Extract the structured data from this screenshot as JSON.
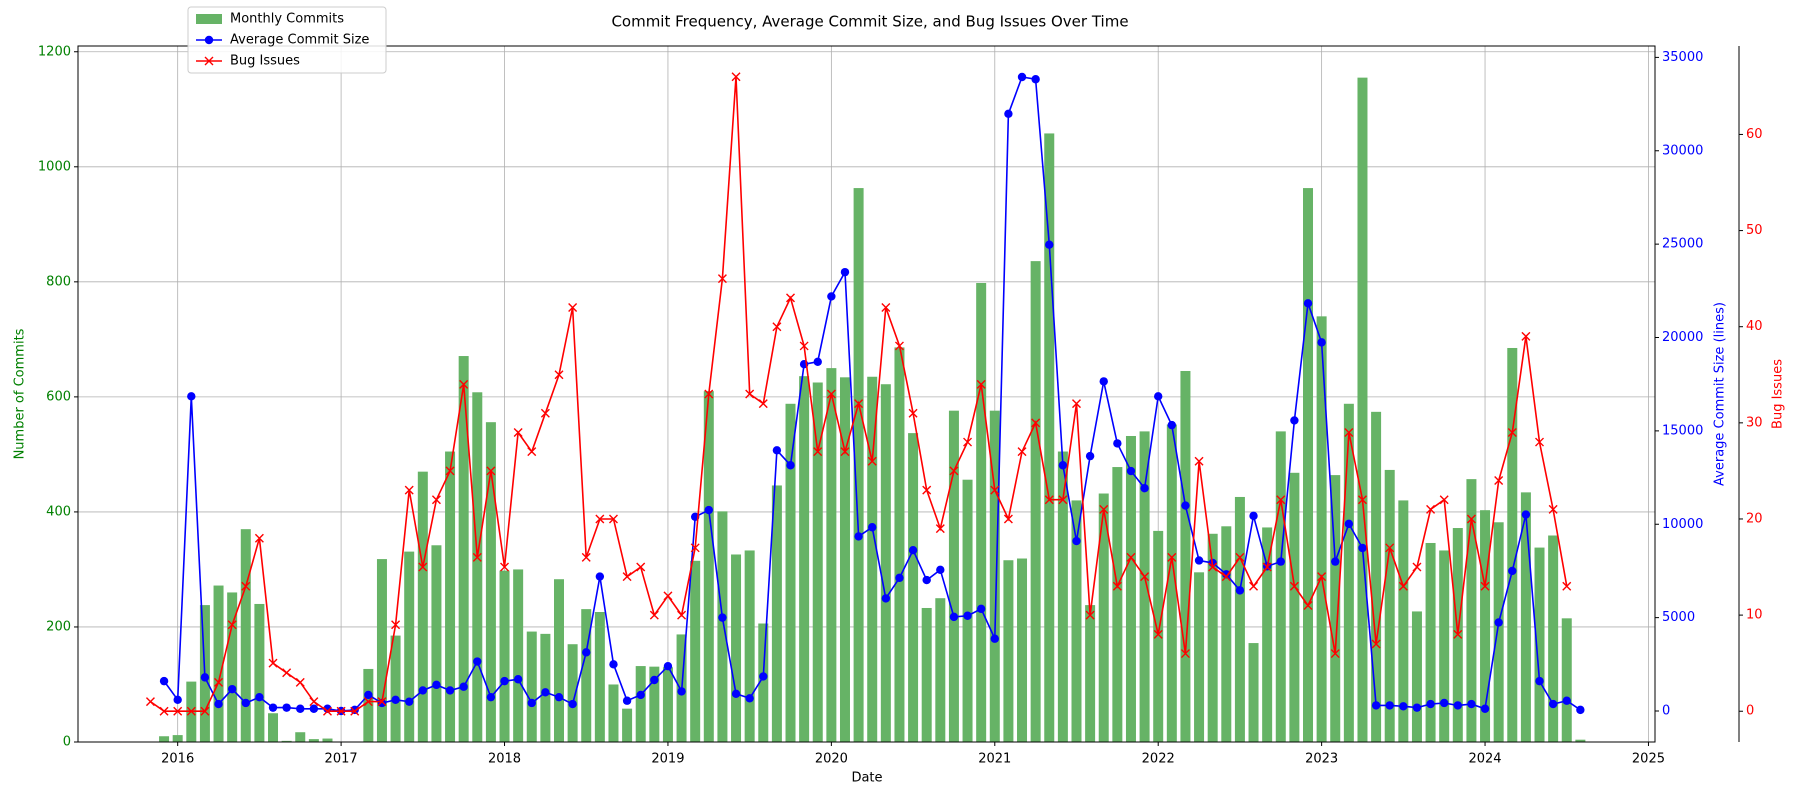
{
  "chart_data": {
    "type": "bar-line",
    "title": "Commit Frequency, Average Commit Size, and Bug Issues Over Time",
    "x_label": "Date",
    "y_label": "Number of Commits",
    "y2_label": "Average Commit Size (lines)",
    "y3_label": "Bug Issues",
    "x": [
      "2015-11",
      "2015-12",
      "2016-01",
      "2016-02",
      "2016-03",
      "2016-04",
      "2016-05",
      "2016-06",
      "2016-07",
      "2016-08",
      "2016-09",
      "2016-10",
      "2016-11",
      "2016-12",
      "2017-01",
      "2017-02",
      "2017-03",
      "2017-04",
      "2017-05",
      "2017-06",
      "2017-07",
      "2017-08",
      "2017-09",
      "2017-10",
      "2017-11",
      "2017-12",
      "2018-01",
      "2018-02",
      "2018-03",
      "2018-04",
      "2018-05",
      "2018-06",
      "2018-07",
      "2018-08",
      "2018-09",
      "2018-10",
      "2018-11",
      "2018-12",
      "2019-01",
      "2019-02",
      "2019-03",
      "2019-04",
      "2019-05",
      "2019-06",
      "2019-07",
      "2019-08",
      "2019-09",
      "2019-10",
      "2019-11",
      "2019-12",
      "2020-01",
      "2020-02",
      "2020-03",
      "2020-04",
      "2020-05",
      "2020-06",
      "2020-07",
      "2020-08",
      "2020-09",
      "2020-10",
      "2020-11",
      "2020-12",
      "2021-01",
      "2021-02",
      "2021-03",
      "2021-04",
      "2021-05",
      "2021-06",
      "2021-07",
      "2021-08",
      "2021-09",
      "2021-10",
      "2021-11",
      "2021-12",
      "2022-01",
      "2022-02",
      "2022-03",
      "2022-04",
      "2022-05",
      "2022-06",
      "2022-07",
      "2022-08",
      "2022-09",
      "2022-10",
      "2022-11",
      "2022-12",
      "2023-01",
      "2023-02",
      "2023-03",
      "2023-04",
      "2023-05",
      "2023-06",
      "2023-07",
      "2023-08",
      "2023-09",
      "2023-10",
      "2023-11",
      "2023-12",
      "2024-01",
      "2024-02",
      "2024-03",
      "2024-04",
      "2024-05",
      "2024-06",
      "2024-07",
      "2024-08"
    ],
    "series": [
      {
        "name": "Monthly Commits",
        "kind": "bar",
        "color": "#66b366",
        "values": [
          0,
          10,
          12,
          105,
          238,
          272,
          260,
          370,
          240,
          50,
          2,
          17,
          5,
          6,
          0,
          0,
          127,
          318,
          185,
          331,
          470,
          342,
          505,
          671,
          608,
          556,
          298,
          300,
          192,
          188,
          283,
          170,
          231,
          226,
          100,
          58,
          132,
          131,
          130,
          187,
          315,
          610,
          401,
          326,
          333,
          206,
          446,
          588,
          636,
          625,
          650,
          634,
          963,
          635,
          622,
          686,
          537,
          233,
          250,
          576,
          456,
          798,
          576,
          316,
          319,
          836,
          1058,
          505,
          420,
          238,
          432,
          478,
          532,
          540,
          367,
          552,
          645,
          295,
          362,
          375,
          426,
          172,
          373,
          540,
          468,
          963,
          740,
          464,
          588,
          1155,
          574,
          473,
          420,
          227,
          346,
          333,
          372,
          457,
          403,
          382,
          685,
          434,
          338,
          359,
          215,
          4
        ]
      },
      {
        "name": "Average Commit Size",
        "kind": "line",
        "marker": "o",
        "axis": "y2",
        "color": "#0000ff",
        "values": [
          null,
          1600,
          600,
          16850,
          1800,
          370,
          1170,
          430,
          740,
          180,
          180,
          120,
          120,
          120,
          0,
          60,
          860,
          430,
          600,
          500,
          1100,
          1400,
          1100,
          1300,
          2650,
          740,
          1600,
          1700,
          430,
          1000,
          740,
          370,
          3140,
          7200,
          2500,
          550,
          860,
          1660,
          2400,
          1050,
          10400,
          10760,
          5000,
          920,
          680,
          1850,
          13960,
          13160,
          18570,
          18700,
          22200,
          23500,
          9350,
          9840,
          6030,
          7130,
          8610,
          7010,
          7560,
          5040,
          5100,
          5470,
          3870,
          31980,
          33950,
          33830,
          24970,
          13160,
          9100,
          13650,
          17650,
          14330,
          12850,
          11930,
          16850,
          15310,
          11000,
          8060,
          7930,
          7320,
          6460,
          10450,
          7750,
          8000,
          15560,
          21830,
          19740,
          8000,
          10020,
          8730,
          300,
          300,
          250,
          180,
          370,
          430,
          300,
          370,
          120,
          4740,
          7500,
          10520,
          1600,
          370,
          550,
          60
        ]
      },
      {
        "name": "Bug Issues",
        "kind": "line",
        "marker": "x",
        "axis": "y3",
        "color": "#ff0000",
        "values": [
          1,
          0,
          0,
          0,
          0,
          3,
          9,
          13,
          18,
          5,
          4,
          3,
          1,
          0,
          0,
          0,
          1,
          1,
          9,
          23,
          15,
          22,
          25,
          34,
          16,
          25,
          15,
          29,
          27,
          31,
          35,
          42,
          16,
          20,
          20,
          14,
          15,
          10,
          12,
          10,
          17,
          33,
          45,
          66,
          33,
          32,
          40,
          43,
          38,
          27,
          33,
          27,
          32,
          26,
          42,
          38,
          31,
          23,
          19,
          25,
          28,
          34,
          23,
          20,
          27,
          30,
          22,
          22,
          32,
          10,
          21,
          13,
          16,
          14,
          8,
          16,
          6,
          26,
          15,
          14,
          16,
          13,
          15,
          22,
          13,
          11,
          14,
          6,
          29,
          22,
          7,
          17,
          13,
          15,
          21,
          22,
          8,
          20,
          13,
          24,
          29,
          39,
          28,
          21,
          13,
          null
        ]
      }
    ],
    "xlim": [
      2015.39,
      2025.04
    ],
    "xticks": [
      2016,
      2017,
      2018,
      2019,
      2020,
      2021,
      2022,
      2023,
      2024,
      2025
    ],
    "ylim": [
      0,
      1210
    ],
    "yticks": [
      0,
      200,
      400,
      600,
      800,
      1000,
      1200
    ],
    "y2lim": [
      -1660,
      35610
    ],
    "y2ticks": [
      0,
      5000,
      10000,
      15000,
      20000,
      25000,
      30000,
      35000
    ],
    "y3lim": [
      -3.2,
      69.2
    ],
    "y3ticks": [
      0,
      10,
      20,
      30,
      40,
      50,
      60
    ],
    "grid": true,
    "legend": "upper left"
  }
}
